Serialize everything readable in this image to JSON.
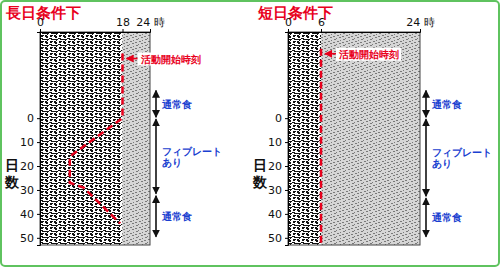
{
  "chart_data": [
    {
      "type": "line",
      "title": "長日条件下",
      "y_label": "日数",
      "xlim": [
        0,
        24
      ],
      "xticks": [
        0,
        18,
        {
          "value": 24,
          "label": "24 時"
        }
      ],
      "ylim": [
        -36,
        53
      ],
      "yticks": [
        0,
        10,
        20,
        30,
        40,
        50
      ],
      "shaded_hours": [
        18,
        24
      ],
      "series": [
        {
          "name": "活動開始時刻",
          "color": "#e8001c",
          "line_style": "dashed",
          "x": [
            18,
            18,
            6.5,
            6.5,
            9.5,
            17.5
          ],
          "values": [
            -27,
            0,
            16,
            27,
            29,
            44
          ]
        }
      ],
      "periods": [
        {
          "label": "通常食",
          "start": -12,
          "end": 0
        },
        {
          "label": "フィブレートあり",
          "start": 0,
          "end": 32
        },
        {
          "label": "通常食",
          "start": 32,
          "end": 50
        }
      ]
    },
    {
      "type": "line",
      "title": "短日条件下",
      "y_label": "日数",
      "xlim": [
        0,
        24
      ],
      "xticks": [
        0,
        6,
        {
          "value": 24,
          "label": "24 時"
        }
      ],
      "ylim": [
        -36,
        53
      ],
      "yticks": [
        0,
        10,
        20,
        30,
        40,
        50
      ],
      "shaded_hours": [
        6,
        24
      ],
      "series": [
        {
          "name": "活動開始時刻",
          "color": "#e8001c",
          "line_style": "dashed",
          "x": [
            6,
            6
          ],
          "values": [
            -29,
            53
          ]
        }
      ],
      "periods": [
        {
          "label": "通常食",
          "start": -12,
          "end": 0
        },
        {
          "label": "フィブレートあり",
          "start": 0,
          "end": 33
        },
        {
          "label": "通常食",
          "start": 33,
          "end": 50
        }
      ]
    }
  ]
}
